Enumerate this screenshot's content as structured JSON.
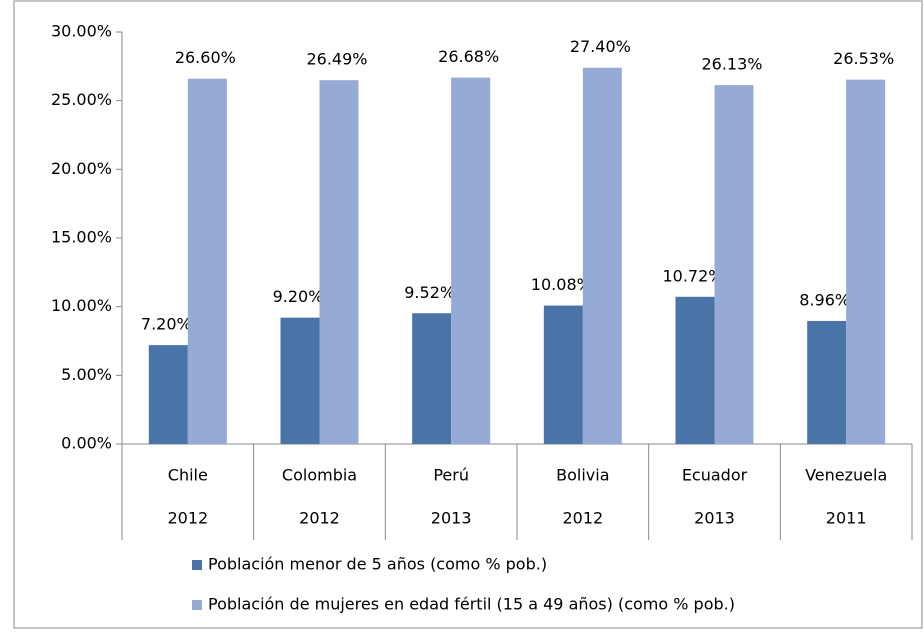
{
  "chart_data": {
    "type": "bar",
    "categories": [
      "Chile",
      "Colombia",
      "Perú",
      "Bolivia",
      "Ecuador",
      "Venezuela"
    ],
    "category_years": [
      "2012",
      "2012",
      "2013",
      "2012",
      "2013",
      "2011"
    ],
    "series": [
      {
        "name": "Población menor de 5 años (como % pob.)",
        "color": "#4a73a8",
        "values": [
          7.2,
          9.2,
          9.52,
          10.08,
          10.72,
          8.96
        ],
        "value_labels": [
          "7.20%",
          "9.20%",
          "9.52%",
          "10.08%",
          "10.72%",
          "8.96%"
        ]
      },
      {
        "name": "Población de mujeres en edad fértil (15 a 49 años) (como % pob.)",
        "color": "#95abd5",
        "values": [
          26.6,
          26.49,
          26.68,
          27.4,
          26.13,
          26.53
        ],
        "value_labels": [
          "26.60%",
          "26.49%",
          "26.68%",
          "27.40%",
          "26.13%",
          "26.53%"
        ]
      }
    ],
    "ylim": [
      0,
      30
    ],
    "yticks": [
      {
        "value": 0,
        "label": "0.00%"
      },
      {
        "value": 5,
        "label": "5.00%"
      },
      {
        "value": 10,
        "label": "10.00%"
      },
      {
        "value": 15,
        "label": "15.00%"
      },
      {
        "value": 20,
        "label": "20.00%"
      },
      {
        "value": 25,
        "label": "25.00%"
      },
      {
        "value": 30,
        "label": "30.00%"
      }
    ],
    "grid": false,
    "legend": "bottom"
  }
}
